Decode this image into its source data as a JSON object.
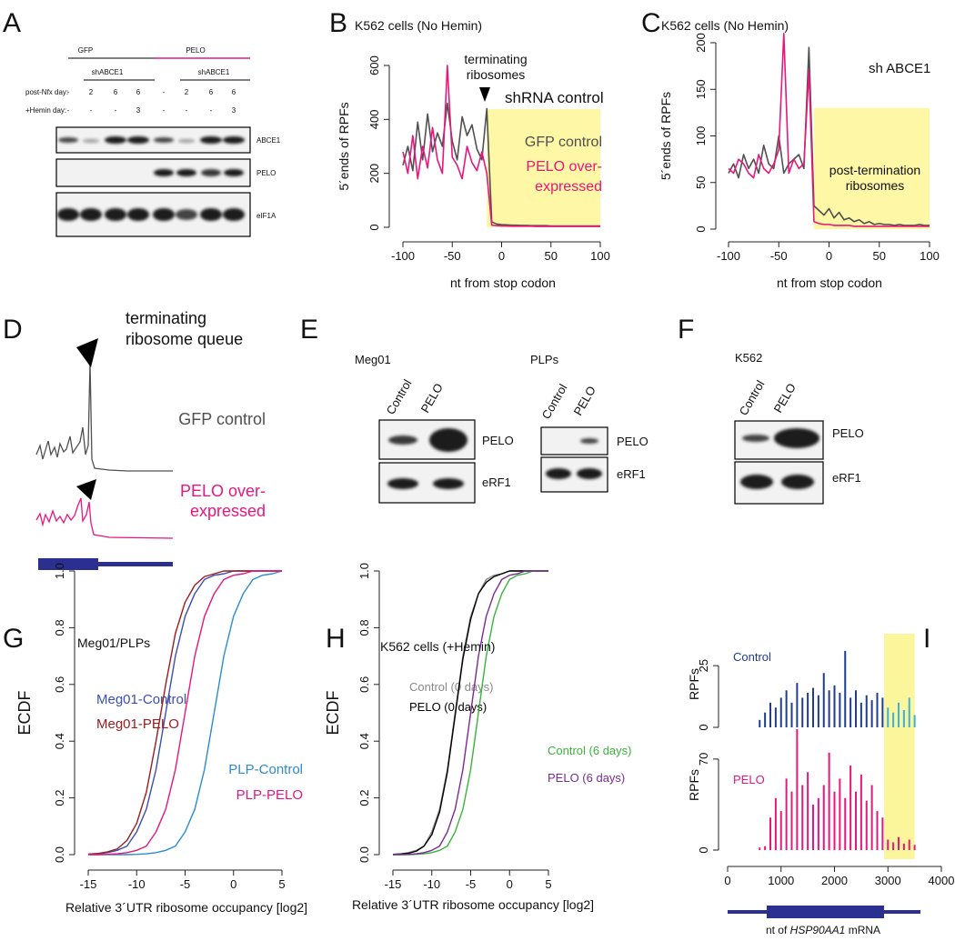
{
  "panel_labels": [
    "A",
    "B",
    "C",
    "D",
    "E",
    "F",
    "G",
    "H",
    "I"
  ],
  "panel_a": {
    "groups": [
      "GFP",
      "PELO"
    ],
    "shrna": [
      "shABCE1",
      "shABCE1"
    ],
    "row_labels": [
      "post-Nfx day:",
      "+Hemin day:"
    ],
    "nfx_days": [
      "-",
      "2",
      "6",
      "6",
      "-",
      "2",
      "6",
      "6"
    ],
    "hemin_days": [
      "-",
      "-",
      "-",
      "3",
      "-",
      "-",
      "-",
      "3"
    ],
    "blots": [
      "ABCE1",
      "PELO",
      "eIF1A"
    ]
  },
  "panel_d": {
    "annotation": [
      "terminating",
      "ribosome queue"
    ],
    "traces": [
      "GFP control",
      [
        "PELO over-",
        "expressed"
      ]
    ]
  },
  "panel_e": {
    "cell_lines": [
      "Meg01",
      "PLPs"
    ],
    "columns": [
      "Control",
      "PELO"
    ],
    "blots": [
      "PELO",
      "eRF1"
    ]
  },
  "panel_f": {
    "cell_line": "K562",
    "columns": [
      "Control",
      "PELO"
    ],
    "blots": [
      "PELO",
      "eRF1"
    ]
  },
  "chart_data": [
    {
      "type": "line",
      "title": "K562 cells (No Hemin)",
      "x_label": "nt from stop codon",
      "y_label": "5´ends of RPFs",
      "annotations": [
        [
          "terminating",
          "ribosomes"
        ],
        "shRNA control"
      ],
      "x": [
        -100,
        -95,
        -90,
        -85,
        -80,
        -75,
        -70,
        -65,
        -60,
        -55,
        -50,
        -45,
        -40,
        -35,
        -30,
        -25,
        -20,
        -15,
        -10,
        -5,
        0,
        5,
        10,
        15,
        20,
        25,
        30,
        35,
        40,
        45,
        50,
        55,
        60,
        65,
        70,
        75,
        80,
        85,
        90,
        95,
        100
      ],
      "series": [
        {
          "name": "GFP control",
          "color": "#505050",
          "values": [
            230,
            300,
            210,
            390,
            250,
            420,
            280,
            350,
            300,
            460,
            320,
            250,
            410,
            340,
            380,
            290,
            250,
            440,
            20,
            12,
            10,
            9,
            8,
            8,
            7,
            7,
            6,
            6,
            6,
            6,
            5,
            5,
            5,
            5,
            5,
            5,
            5,
            5,
            5,
            5,
            5
          ]
        },
        {
          "name": [
            "PELO over-",
            "expressed"
          ],
          "color": "#e8177d",
          "values": [
            280,
            200,
            340,
            180,
            300,
            220,
            370,
            250,
            200,
            600,
            260,
            230,
            180,
            300,
            240,
            210,
            280,
            200,
            8,
            6,
            5,
            5,
            4,
            4,
            4,
            4,
            4,
            3,
            3,
            3,
            3,
            3,
            3,
            3,
            3,
            3,
            3,
            3,
            3,
            3,
            3
          ]
        }
      ],
      "xlim": [
        -100,
        100
      ],
      "xticks": [
        -100,
        -50,
        0,
        50,
        100
      ],
      "ylim": [
        0,
        600
      ],
      "yticks": [
        0,
        200,
        400,
        600
      ],
      "highlight": {
        "x": [
          -15,
          100
        ],
        "y": [
          0,
          438
        ],
        "color": "#fdf7a6"
      }
    },
    {
      "type": "line",
      "title": "K562 cells (No Hemin)",
      "x_label": "nt from stop codon",
      "y_label": "5´ends of RPFs",
      "annotations": [
        "sh ABCE1",
        [
          "post-termination",
          "ribosomes"
        ]
      ],
      "x": [
        -100,
        -95,
        -90,
        -85,
        -80,
        -75,
        -70,
        -65,
        -60,
        -55,
        -50,
        -45,
        -40,
        -35,
        -30,
        -25,
        -20,
        -15,
        -10,
        -5,
        0,
        5,
        10,
        15,
        20,
        25,
        30,
        35,
        40,
        45,
        50,
        55,
        60,
        65,
        70,
        75,
        80,
        85,
        90,
        95,
        100
      ],
      "series": [
        {
          "color": "#505050",
          "values": [
            60,
            70,
            55,
            80,
            65,
            75,
            60,
            90,
            70,
            65,
            100,
            60,
            70,
            75,
            80,
            65,
            195,
            25,
            20,
            15,
            22,
            12,
            18,
            10,
            12,
            8,
            10,
            6,
            8,
            5,
            6,
            5,
            5,
            4,
            5,
            4,
            4,
            4,
            5,
            4,
            4
          ]
        },
        {
          "color": "#e8177d",
          "values": [
            65,
            60,
            75,
            70,
            60,
            55,
            80,
            65,
            60,
            70,
            85,
            210,
            60,
            75,
            65,
            70,
            170,
            8,
            6,
            5,
            5,
            4,
            4,
            4,
            4,
            3,
            3,
            3,
            3,
            3,
            3,
            3,
            3,
            3,
            3,
            3,
            3,
            3,
            3,
            3,
            3
          ]
        }
      ],
      "xlim": [
        -100,
        100
      ],
      "xticks": [
        -100,
        -50,
        0,
        50,
        100
      ],
      "ylim": [
        0,
        200
      ],
      "yticks": [
        0,
        50,
        100,
        150,
        200
      ],
      "highlight": {
        "x": [
          -15,
          100
        ],
        "y": [
          0,
          130
        ],
        "color": "#fdf7a6"
      }
    },
    {
      "type": "line",
      "title": "Meg01/PLPs",
      "x_label": "Relative 3´UTR ribosome occupancy [log2]",
      "y_label": "ECDF",
      "x": [
        -15,
        -14,
        -13,
        -12,
        -11,
        -10,
        -9,
        -8,
        -7,
        -6,
        -5,
        -4,
        -3,
        -2,
        -1,
        0,
        1,
        2,
        3,
        4,
        5
      ],
      "series": [
        {
          "name": "Meg01-Control",
          "color": "#3b4fb0",
          "values": [
            0.001,
            0.003,
            0.007,
            0.015,
            0.03,
            0.08,
            0.16,
            0.3,
            0.5,
            0.7,
            0.84,
            0.92,
            0.97,
            0.985,
            0.99,
            1,
            1,
            1,
            1,
            1,
            1
          ]
        },
        {
          "name": "Meg01-PELO",
          "color": "#9b1c20",
          "values": [
            0.002,
            0.004,
            0.01,
            0.02,
            0.05,
            0.11,
            0.22,
            0.4,
            0.6,
            0.78,
            0.89,
            0.95,
            0.98,
            0.99,
            1,
            1,
            1,
            1,
            1,
            1,
            1
          ]
        },
        {
          "name": "PLP-Control",
          "color": "#2b8ccf",
          "values": [
            0,
            0,
            0,
            0,
            0,
            0.001,
            0.003,
            0.007,
            0.015,
            0.03,
            0.08,
            0.16,
            0.3,
            0.5,
            0.7,
            0.84,
            0.92,
            0.97,
            0.985,
            0.99,
            1
          ]
        },
        {
          "name": "PLP-PELO",
          "color": "#e0197d",
          "values": [
            0,
            0,
            0.001,
            0.003,
            0.007,
            0.015,
            0.03,
            0.08,
            0.16,
            0.3,
            0.5,
            0.7,
            0.84,
            0.92,
            0.97,
            0.985,
            0.99,
            1,
            1,
            1,
            1
          ]
        }
      ],
      "xlim": [
        -15,
        5
      ],
      "xticks": [
        -15,
        -10,
        -5,
        0,
        5
      ],
      "ylim": [
        0,
        1
      ],
      "yticks": [
        {
          "value": 0,
          "label": "0.0"
        },
        0.2,
        0.4,
        0.6,
        0.8,
        {
          "value": 1,
          "label": "1.0"
        }
      ]
    },
    {
      "type": "line",
      "title": "K562 cells (+Hemin)",
      "x_label": "Relative 3´UTR ribosome occupancy [log2]",
      "y_label": "ECDF",
      "x": [
        -15,
        -14,
        -13,
        -12,
        -11,
        -10,
        -9,
        -8,
        -7,
        -6,
        -5,
        -4,
        -3,
        -2,
        -1,
        0,
        1,
        2,
        3,
        4,
        5
      ],
      "series": [
        {
          "name": "Control (0 days)",
          "color": "#8a8a8a",
          "values": [
            0.001,
            0.003,
            0.007,
            0.015,
            0.03,
            0.08,
            0.16,
            0.3,
            0.5,
            0.7,
            0.84,
            0.92,
            0.97,
            0.985,
            0.99,
            1,
            1,
            1,
            1,
            1,
            1
          ]
        },
        {
          "name": "PELO (0 days)",
          "color": "#000000",
          "values": [
            0.001,
            0.002,
            0.005,
            0.012,
            0.03,
            0.07,
            0.15,
            0.29,
            0.49,
            0.69,
            0.83,
            0.92,
            0.96,
            0.98,
            0.99,
            1,
            1,
            1,
            1,
            1,
            1
          ]
        },
        {
          "name": "Control (6 days)",
          "color": "#3bb33b",
          "values": [
            0,
            0,
            0,
            0.001,
            0.003,
            0.007,
            0.015,
            0.03,
            0.08,
            0.16,
            0.3,
            0.5,
            0.7,
            0.84,
            0.92,
            0.97,
            0.985,
            0.99,
            1,
            1,
            1
          ]
        },
        {
          "name": "PELO (6 days)",
          "color": "#7b2a8f",
          "values": [
            0,
            0,
            0.001,
            0.003,
            0.007,
            0.015,
            0.03,
            0.08,
            0.16,
            0.3,
            0.5,
            0.7,
            0.84,
            0.92,
            0.97,
            0.985,
            0.99,
            1,
            1,
            1,
            1
          ]
        }
      ],
      "xlim": [
        -15,
        5
      ],
      "xticks": [
        -15,
        -10,
        -5,
        0,
        5
      ],
      "ylim": [
        0,
        1
      ],
      "yticks": [
        {
          "value": 0,
          "label": "0.0"
        },
        0.2,
        0.4,
        0.6,
        0.8,
        {
          "value": 1,
          "label": "1.0"
        }
      ]
    },
    {
      "type": "bar",
      "y_label": "RPFs",
      "x": [
        600,
        700,
        800,
        900,
        1000,
        1100,
        1200,
        1300,
        1400,
        1500,
        1600,
        1700,
        1800,
        1900,
        2000,
        2100,
        2200,
        2300,
        2400,
        2500,
        2600,
        2700,
        2800,
        2900,
        3000,
        3100,
        3200,
        3300,
        3400,
        3500
      ],
      "series": [
        {
          "name": "Control",
          "color": "#1f3d8f",
          "values": [
            3,
            6,
            10,
            8,
            12,
            15,
            10,
            18,
            12,
            14,
            16,
            13,
            22,
            15,
            17,
            14,
            31,
            12,
            15,
            10,
            13,
            11,
            14,
            12,
            8,
            6,
            10,
            7,
            12,
            5
          ]
        }
      ],
      "highlight_bar_color": "#3bb0e0",
      "highlight": {
        "x": [
          2930,
          3500
        ],
        "color": "#fbf59b"
      },
      "xlim": [
        0,
        4000
      ],
      "ylim": [
        0,
        35
      ],
      "yticks": [
        0,
        25
      ]
    },
    {
      "type": "bar",
      "y_label": "RPFs",
      "x_label": [
        "nt of ",
        "HSP90AA1",
        " mRNA"
      ],
      "x": [
        600,
        700,
        800,
        900,
        1000,
        1100,
        1200,
        1300,
        1400,
        1500,
        1600,
        1700,
        1800,
        1900,
        2000,
        2100,
        2200,
        2300,
        2400,
        2500,
        2600,
        2700,
        2800,
        2900,
        3000,
        3100,
        3200,
        3300,
        3400,
        3500
      ],
      "series": [
        {
          "name": "PELO",
          "color": "#e8177d",
          "values": [
            2,
            3,
            25,
            40,
            30,
            55,
            45,
            93,
            50,
            60,
            35,
            40,
            50,
            75,
            45,
            55,
            40,
            65,
            45,
            58,
            38,
            50,
            30,
            25,
            8,
            6,
            10,
            5,
            8,
            4
          ]
        }
      ],
      "highlight": {
        "x": [
          2930,
          3500
        ],
        "color": "#fbf59b"
      },
      "xlim": [
        0,
        4000
      ],
      "xticks": [
        0,
        1000,
        2000,
        3000,
        4000
      ],
      "ylim": [
        0,
        100
      ],
      "yticks": [
        0,
        70
      ]
    }
  ]
}
